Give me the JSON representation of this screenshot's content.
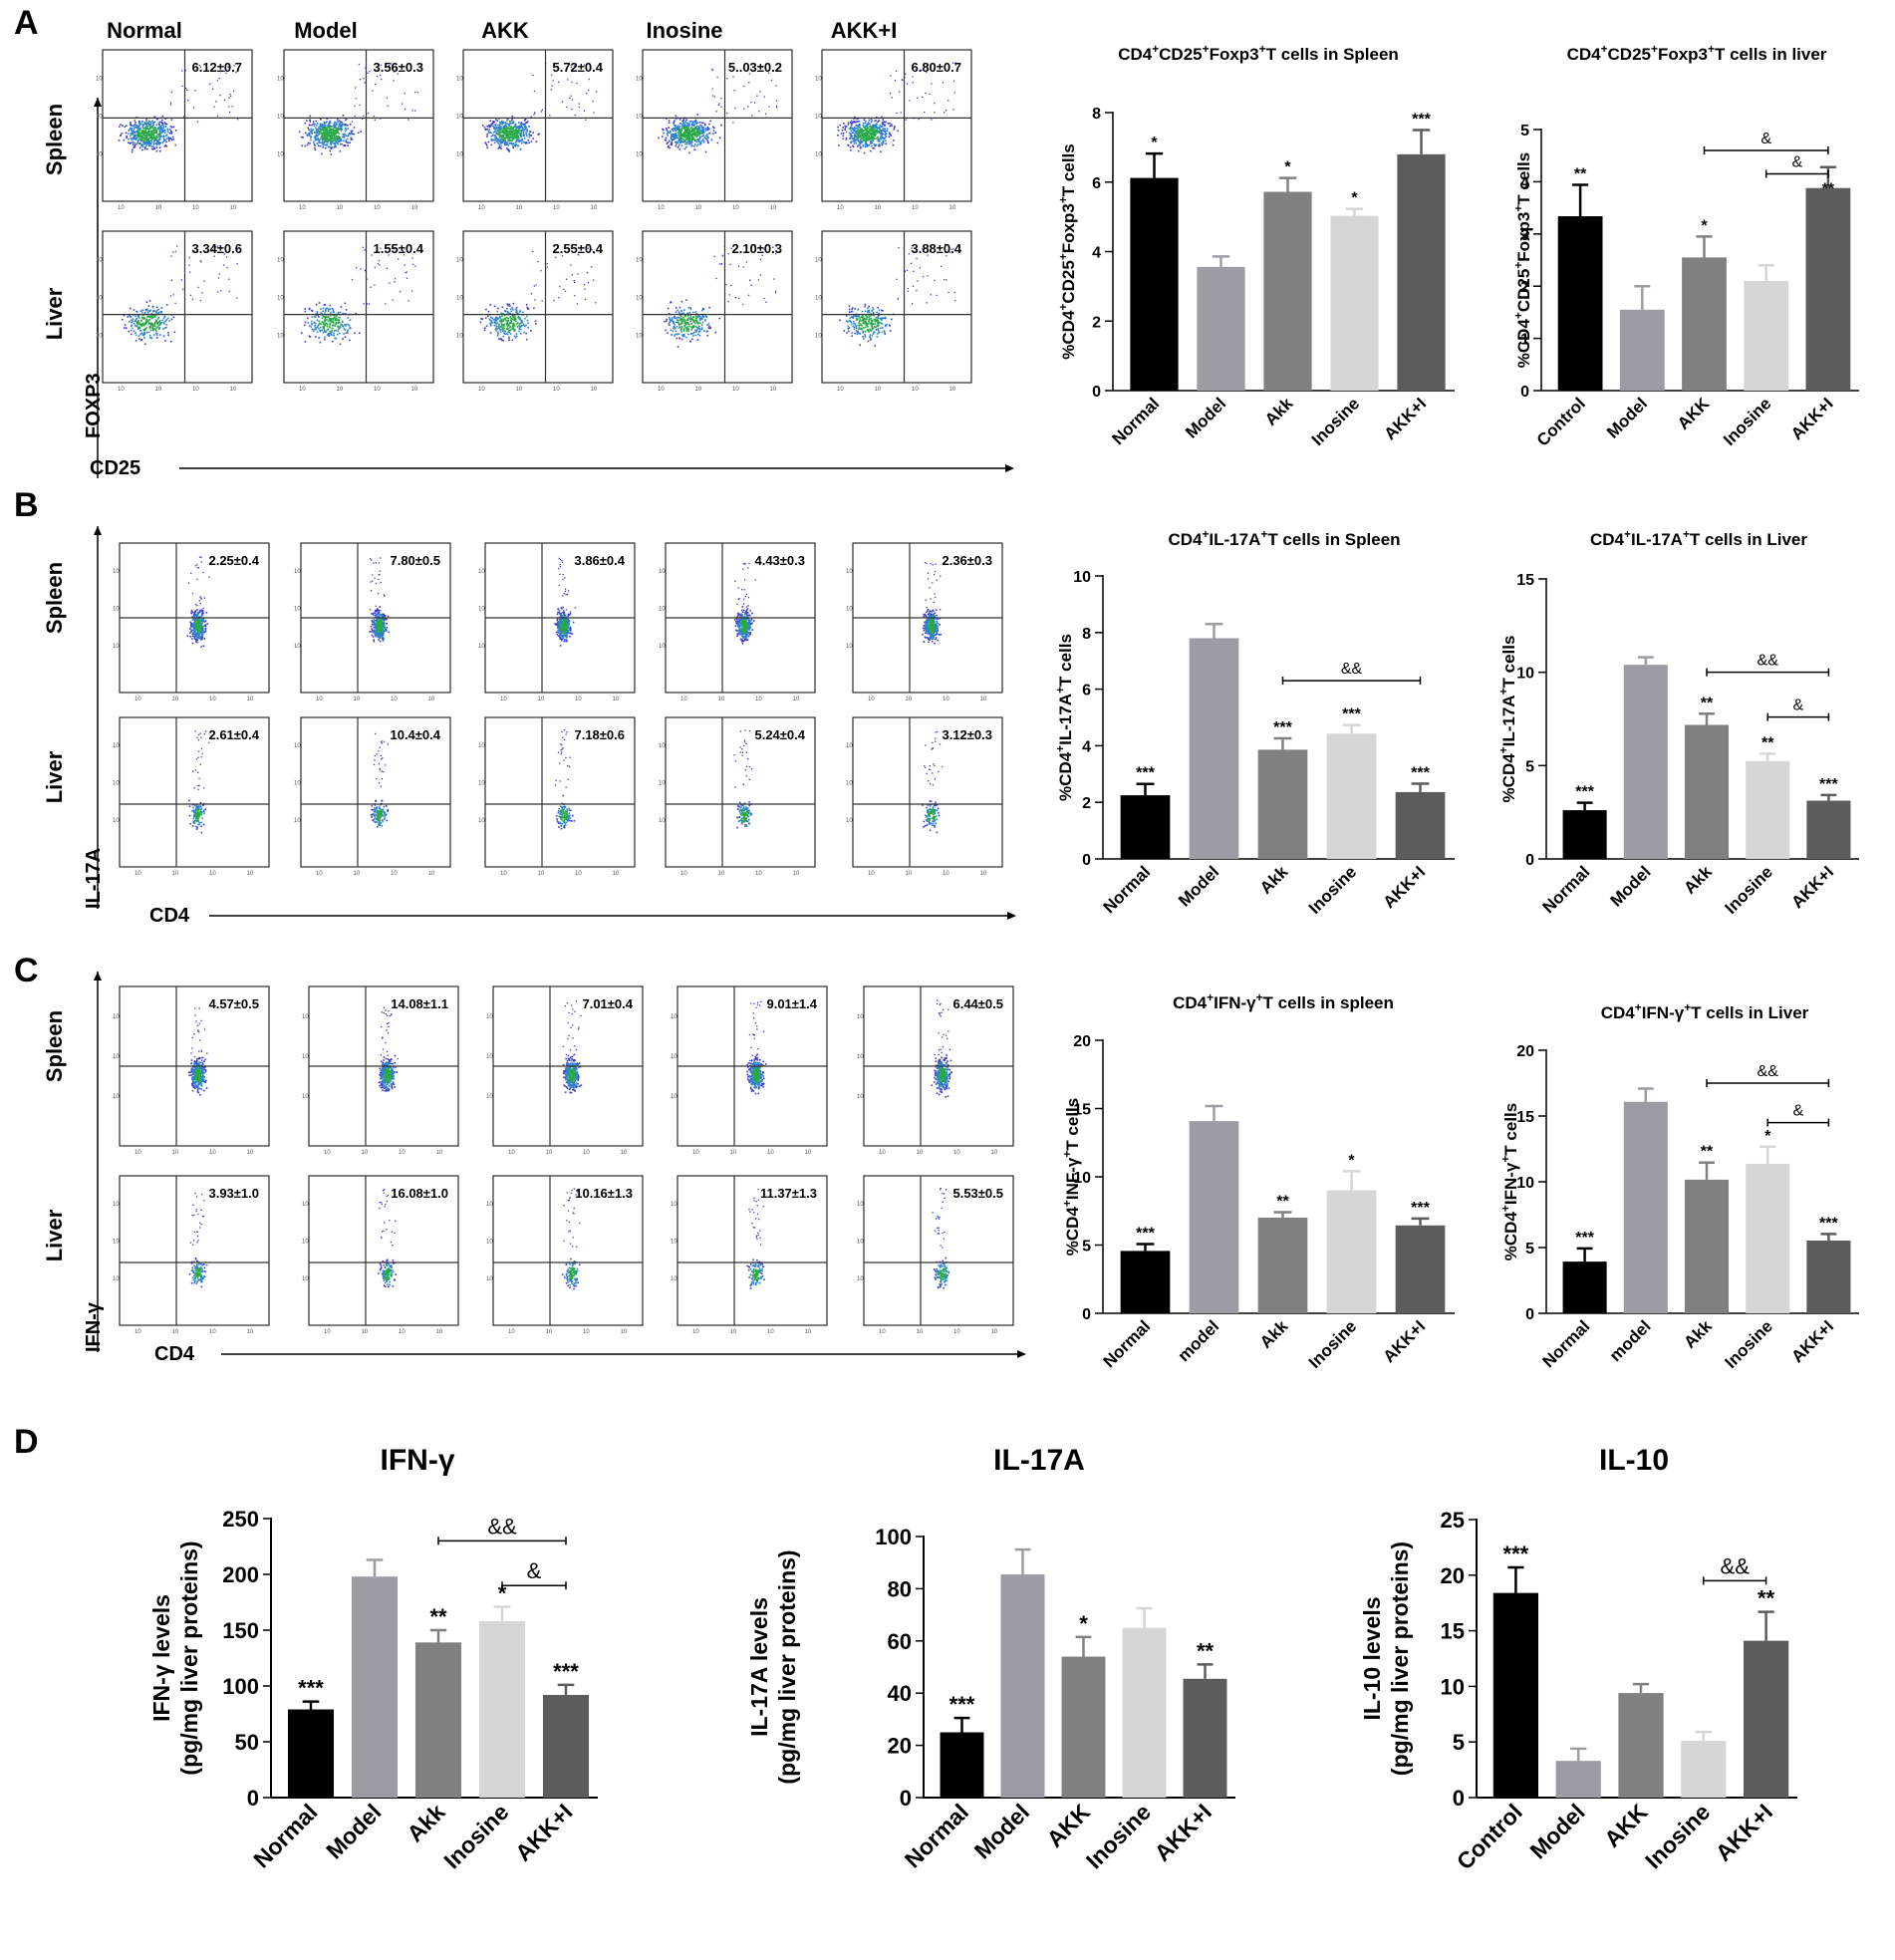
{
  "colors": {
    "c1": "#000000",
    "c2": "#9c9ca5",
    "c3": "#808080",
    "c4": "#d6d6d6",
    "c5": "#5c5c5c",
    "dots": "#3b3bc8"
  },
  "panels": {
    "A": {
      "label": "A",
      "flow": {
        "groups": [
          "Normal",
          "Model",
          "AKK",
          "Inosine",
          "AKK+I"
        ],
        "rows": [
          "Spleen",
          "Liver"
        ],
        "ylabel": "FOXP3",
        "xlabel": "CD25",
        "values": [
          [
            "6.12±0.7",
            "3.56±0.3",
            "5.72±0.4",
            "5..03±0.2",
            "6.80±0.7"
          ],
          [
            "3.34±0.6",
            "1.55±0.4",
            "2.55±0.4",
            "2.10±0.3",
            "3.88±0.4"
          ]
        ]
      }
    },
    "B": {
      "label": "B",
      "flow": {
        "ylabel": "IL-17A",
        "xlabel": "CD4",
        "values": [
          [
            "2.25±0.4",
            "7.80±0.5",
            "3.86±0.4",
            "4.43±0.3",
            "2.36±0.3"
          ],
          [
            "2.61±0.4",
            "10.4±0.4",
            "7.18±0.6",
            "5.24±0.4",
            "3.12±0.3"
          ]
        ]
      }
    },
    "C": {
      "label": "C",
      "flow": {
        "ylabel": "IFN-γ",
        "xlabel": "CD4",
        "values": [
          [
            "4.57±0.5",
            "14.08±1.1",
            "7.01±0.4",
            "9.01±1.4",
            "6.44±0.5"
          ],
          [
            "3.93±1.0",
            "16.08±1.0",
            "10.16±1.3",
            "11.37±1.3",
            "5.53±0.5"
          ]
        ]
      }
    },
    "D": {
      "label": "D"
    }
  },
  "chart_data": [
    {
      "type": "bar",
      "title": "CD4⁺CD25⁺Foxp3⁺T cells in Spleen",
      "ylabel": "%CD4⁺CD25⁺Foxp3⁺T cells",
      "categories": [
        "Normal",
        "Model",
        "Akk",
        "Inosine",
        "AKK+I"
      ],
      "values": [
        6.12,
        3.56,
        5.72,
        5.03,
        6.8
      ],
      "errors": [
        0.7,
        0.3,
        0.4,
        0.2,
        0.7
      ],
      "significance": [
        "*",
        "",
        "*",
        "*",
        "***"
      ],
      "ylim": [
        0,
        8
      ],
      "yticks": [
        0,
        2,
        4,
        6,
        8
      ],
      "brackets": []
    },
    {
      "type": "bar",
      "title": "CD4⁺CD25⁺Foxp3⁺T cells in liver",
      "ylabel": "%CD4⁺CD25⁺Foxp3⁺T cells",
      "categories": [
        "Control",
        "Model",
        "AKK",
        "Inosine",
        "AKK+I"
      ],
      "values": [
        3.34,
        1.55,
        2.55,
        2.1,
        3.88
      ],
      "errors": [
        0.6,
        0.45,
        0.4,
        0.3,
        0.4
      ],
      "significance": [
        "**",
        "",
        "*",
        "",
        ""
      ],
      "ylim": [
        0,
        5
      ],
      "yticks": [
        0,
        1,
        2,
        3,
        4,
        5
      ],
      "brackets": [
        {
          "from": 2,
          "to": 4,
          "y": 4.6,
          "label": "&"
        },
        {
          "from": 3,
          "to": 4,
          "y": 4.15,
          "label": "&",
          "star_below": "**"
        }
      ]
    },
    {
      "type": "bar",
      "title": "CD4⁺IL-17A⁺T cells in Spleen",
      "ylabel": "%CD4⁺IL-17A⁺T cells",
      "categories": [
        "Normal",
        "Model",
        "Akk",
        "Inosine",
        "AKK+I"
      ],
      "values": [
        2.25,
        7.8,
        3.86,
        4.43,
        2.36
      ],
      "errors": [
        0.4,
        0.5,
        0.4,
        0.3,
        0.3
      ],
      "significance": [
        "***",
        "",
        "***",
        "***",
        "***"
      ],
      "ylim": [
        0,
        10
      ],
      "yticks": [
        0,
        2,
        4,
        6,
        8,
        10
      ],
      "brackets": [
        {
          "from": 2,
          "to": 4,
          "y": 6.3,
          "label": "&&"
        }
      ]
    },
    {
      "type": "bar",
      "title": "CD4⁺IL-17A⁺T cells in Liver",
      "ylabel": "%CD4⁺IL-17A⁺T cells",
      "categories": [
        "Normal",
        "Model",
        "Akk",
        "Inosine",
        "AKK+I"
      ],
      "values": [
        2.61,
        10.4,
        7.18,
        5.24,
        3.12
      ],
      "errors": [
        0.4,
        0.4,
        0.6,
        0.4,
        0.3
      ],
      "significance": [
        "***",
        "",
        "**",
        "**",
        "***"
      ],
      "ylim": [
        0,
        15
      ],
      "yticks": [
        0,
        5,
        10,
        15
      ],
      "brackets": [
        {
          "from": 2,
          "to": 4,
          "y": 10.0,
          "label": "&&"
        },
        {
          "from": 3,
          "to": 4,
          "y": 7.6,
          "label": "&"
        }
      ]
    },
    {
      "type": "bar",
      "title": "CD4⁺IFN-γ⁺T cells in spleen",
      "ylabel": "%CD4⁺INF-γ⁺T cells",
      "categories": [
        "Normal",
        "model",
        "Akk",
        "Inosine",
        "AKK+I"
      ],
      "values": [
        4.57,
        14.08,
        7.01,
        9.01,
        6.44
      ],
      "errors": [
        0.5,
        1.1,
        0.4,
        1.4,
        0.5
      ],
      "significance": [
        "***",
        "",
        "**",
        "*",
        "***"
      ],
      "ylim": [
        0,
        20
      ],
      "yticks": [
        0,
        5,
        10,
        15,
        20
      ],
      "brackets": []
    },
    {
      "type": "bar",
      "title": "CD4⁺IFN-γ⁺T cells in Liver",
      "ylabel": "%CD4⁺IFN-γ⁺T cells",
      "categories": [
        "Normal",
        "model",
        "Akk",
        "Inosine",
        "AKK+I"
      ],
      "values": [
        3.93,
        16.08,
        10.16,
        11.37,
        5.53
      ],
      "errors": [
        1.0,
        1.0,
        1.3,
        1.3,
        0.5
      ],
      "significance": [
        "***",
        "",
        "**",
        "*",
        "***"
      ],
      "ylim": [
        0,
        20
      ],
      "yticks": [
        0,
        5,
        10,
        15,
        20
      ],
      "brackets": [
        {
          "from": 2,
          "to": 4,
          "y": 17.5,
          "label": "&&"
        },
        {
          "from": 3,
          "to": 4,
          "y": 14.5,
          "label": "&"
        }
      ]
    },
    {
      "type": "bar",
      "title": "IFN-γ",
      "ylabel": "IFN-γ levels",
      "ylabel2": "(pg/mg liver proteins)",
      "categories": [
        "Normal",
        "Model",
        "Akk",
        "Inosine",
        "AKK+I"
      ],
      "values": [
        79,
        198,
        139,
        158,
        92
      ],
      "errors": [
        7,
        15,
        11,
        13,
        9
      ],
      "significance": [
        "***",
        "",
        "**",
        "*",
        "***"
      ],
      "ylim": [
        0,
        250
      ],
      "yticks": [
        0,
        50,
        100,
        150,
        200,
        250
      ],
      "brackets": [
        {
          "from": 2,
          "to": 4,
          "y": 230,
          "label": "&&"
        },
        {
          "from": 3,
          "to": 4,
          "y": 190,
          "label": "&"
        }
      ]
    },
    {
      "type": "bar",
      "title": "IL-17A",
      "ylabel": "IL-17A levels",
      "ylabel2": "(pg/mg liver proteins)",
      "categories": [
        "Normal",
        "Model",
        "AKK",
        "Inosine",
        "AKK+I"
      ],
      "values": [
        25,
        85.5,
        54,
        65,
        45.5
      ],
      "errors": [
        5.5,
        9.5,
        7.5,
        7.5,
        5.5
      ],
      "significance": [
        "***",
        "",
        "*",
        "",
        "**"
      ],
      "ylim": [
        0,
        100
      ],
      "yticks": [
        0,
        20,
        40,
        60,
        80,
        100
      ],
      "brackets": []
    },
    {
      "type": "bar",
      "title": "IL-10",
      "ylabel": "IL-10 levels",
      "ylabel2": "(pg/mg liver proteins)",
      "categories": [
        "Control",
        "Model",
        "AKK",
        "Inosine",
        "AKK+I"
      ],
      "values": [
        18.4,
        3.3,
        9.4,
        5.1,
        14.1
      ],
      "errors": [
        2.3,
        1.1,
        0.8,
        0.8,
        2.6
      ],
      "significance": [
        "***",
        "",
        "",
        "",
        "**"
      ],
      "ylim": [
        0,
        25
      ],
      "yticks": [
        0,
        5,
        10,
        15,
        20,
        25
      ],
      "brackets": [
        {
          "from": 3,
          "to": 4,
          "y": 19.5,
          "label": "&&"
        }
      ]
    }
  ]
}
